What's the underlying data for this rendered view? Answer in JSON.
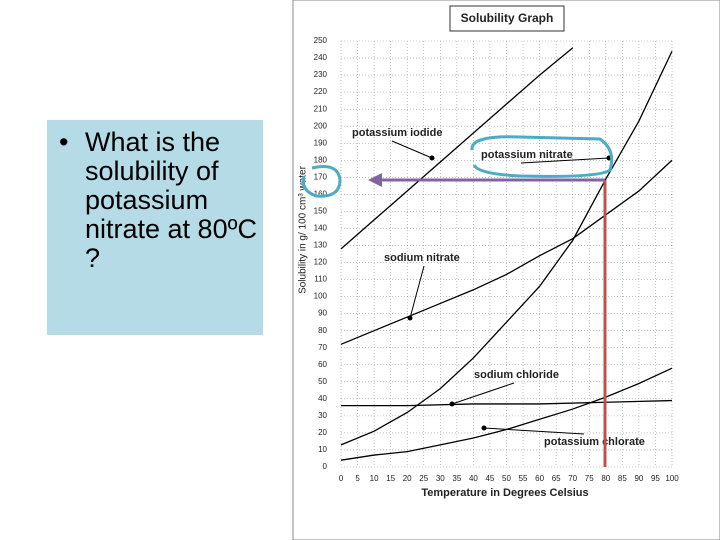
{
  "slide": {
    "question": "What is the solubility of potassium nitrate at 80ºC ?"
  },
  "chart_data": {
    "type": "line",
    "title": "Solubility Graph",
    "x_label": "Temperature in Degrees Celsius",
    "y_label": "Solubility in g/ 100 cm³ water",
    "xlim": [
      0,
      100
    ],
    "ylim": [
      0,
      250
    ],
    "xticks": [
      0,
      5,
      10,
      15,
      20,
      25,
      30,
      35,
      40,
      45,
      50,
      55,
      60,
      65,
      70,
      75,
      80,
      85,
      90,
      95,
      100
    ],
    "yticks": [
      0,
      10,
      20,
      30,
      40,
      50,
      60,
      70,
      80,
      90,
      100,
      110,
      120,
      130,
      140,
      150,
      160,
      170,
      180,
      190,
      200,
      210,
      220,
      230,
      240,
      250
    ],
    "grid": true,
    "series": [
      {
        "name": "potassium iodide",
        "color": "#000000",
        "x": [
          0,
          10,
          20,
          30,
          40,
          50,
          60,
          70
        ],
        "values": [
          128,
          145,
          162,
          179,
          196,
          213,
          230,
          246
        ]
      },
      {
        "name": "potassium nitrate",
        "color": "#000000",
        "x": [
          0,
          10,
          20,
          30,
          40,
          50,
          60,
          70,
          80,
          90,
          100
        ],
        "values": [
          13,
          21,
          32,
          46,
          64,
          85,
          106,
          133,
          169,
          203,
          244
        ]
      },
      {
        "name": "sodium nitrate",
        "color": "#000000",
        "x": [
          0,
          10,
          20,
          30,
          40,
          50,
          60,
          70,
          80,
          90,
          100
        ],
        "values": [
          72,
          80,
          88,
          96,
          104,
          113,
          124,
          134,
          148,
          162,
          180
        ]
      },
      {
        "name": "sodium chloride",
        "color": "#000000",
        "x": [
          0,
          20,
          40,
          60,
          80,
          100
        ],
        "values": [
          36,
          36,
          37,
          37,
          38,
          39
        ]
      },
      {
        "name": "potassium chlorate",
        "color": "#000000",
        "x": [
          0,
          10,
          20,
          30,
          40,
          50,
          60,
          70,
          80,
          90,
          100
        ],
        "values": [
          4,
          7,
          9,
          13,
          17,
          22,
          28,
          34,
          41,
          49,
          58
        ]
      }
    ]
  }
}
